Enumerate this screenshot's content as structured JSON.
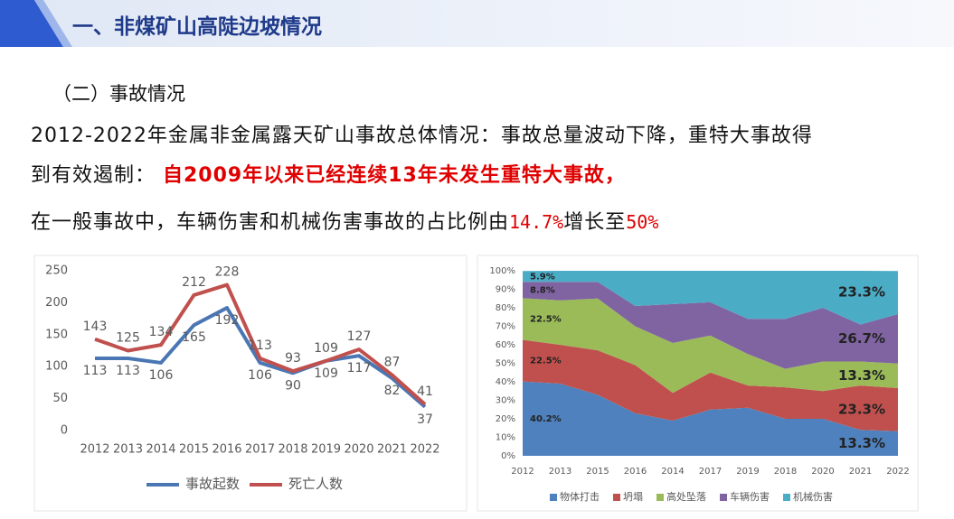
{
  "header": {
    "title": "一、非煤矿山高陡边坡情况"
  },
  "subheading": "（二）事故情况",
  "paragraph": [
    [
      {
        "text": "2012-2022年金属非金属露天矿山事故总体情况：事故总量波动下降，重特大事故得"
      }
    ],
    [
      {
        "text": "到有效遏制： "
      },
      {
        "text": "自2009年以来已经连续13年未发生重特大事故，",
        "color": "#e00000",
        "bold": true
      }
    ],
    [
      {
        "text": "在一般事故中，车辆伤害和机械伤害事故的占比例由"
      },
      {
        "text": "14.7%",
        "color": "#e00000",
        "mono": true
      },
      {
        "text": "增长至"
      },
      {
        "text": "50%",
        "color": "#e00000",
        "mono": true
      }
    ]
  ],
  "chart_data": [
    {
      "type": "line",
      "categories": [
        "2012",
        "2013",
        "2014",
        "2015",
        "2016",
        "2017",
        "2018",
        "2019",
        "2020",
        "2021",
        "2022"
      ],
      "series": [
        {
          "name": "事故起数",
          "color": "#4a77b4",
          "values": [
            113,
            113,
            106,
            165,
            192,
            106,
            90,
            109,
            117,
            82,
            37
          ]
        },
        {
          "name": "死亡人数",
          "color": "#c0504d",
          "values": [
            143,
            125,
            134,
            212,
            228,
            113,
            93,
            109,
            127,
            87,
            41
          ]
        }
      ],
      "ylim": [
        0,
        250
      ],
      "yticks": [
        0,
        50,
        100,
        150,
        200,
        250
      ],
      "grid": false,
      "legend": "bottom"
    },
    {
      "type": "stacked_area",
      "categories": [
        "2012",
        "2013",
        "2015",
        "2016",
        "2014",
        "2017",
        "2019",
        "2018",
        "2020",
        "2021",
        "2022"
      ],
      "series": [
        {
          "name": "物体打击",
          "color": "#4e81bd",
          "values": [
            40.2,
            39,
            33,
            23,
            19,
            25,
            26,
            20,
            20,
            14,
            13.3
          ],
          "value_labels": [
            "40.2%",
            null,
            null,
            null,
            null,
            null,
            null,
            null,
            null,
            null,
            "13.3%"
          ]
        },
        {
          "name": "坍塌",
          "color": "#c0504d",
          "values": [
            22.5,
            21,
            24,
            26,
            15,
            20,
            12,
            17,
            15,
            24,
            23.3
          ],
          "value_labels": [
            "22.5%",
            null,
            null,
            null,
            null,
            null,
            null,
            null,
            null,
            null,
            "23.3%"
          ]
        },
        {
          "name": "高处坠落",
          "color": "#9bbb59",
          "values": [
            22.5,
            24,
            28,
            21,
            27,
            20,
            17,
            10,
            16,
            13,
            13.3
          ],
          "value_labels": [
            "22.5%",
            null,
            null,
            null,
            null,
            null,
            null,
            null,
            null,
            null,
            "13.3%"
          ]
        },
        {
          "name": "车辆伤害",
          "color": "#8064a2",
          "values": [
            8.8,
            10,
            9,
            11,
            21,
            18,
            19,
            27,
            29,
            20,
            26.7
          ],
          "value_labels": [
            "8.8%",
            null,
            null,
            null,
            null,
            null,
            null,
            null,
            null,
            null,
            "26.7%"
          ]
        },
        {
          "name": "机械伤害",
          "color": "#4bacc6",
          "values": [
            5.9,
            6,
            6,
            19,
            18,
            17,
            26,
            26,
            20,
            29,
            23.3
          ],
          "value_labels": [
            "5.9%",
            null,
            null,
            null,
            null,
            null,
            null,
            null,
            null,
            null,
            "23.3%"
          ]
        }
      ],
      "ylim": [
        0,
        100
      ],
      "yticks": [
        {
          "value": 0,
          "label": "0%"
        },
        {
          "value": 10,
          "label": "10%"
        },
        {
          "value": 20,
          "label": "20%"
        },
        {
          "value": 30,
          "label": "30%"
        },
        {
          "value": 40,
          "label": "40%"
        },
        {
          "value": 50,
          "label": "50%"
        },
        {
          "value": 60,
          "label": "60%"
        },
        {
          "value": 70,
          "label": "70%"
        },
        {
          "value": 80,
          "label": "80%"
        },
        {
          "value": 90,
          "label": "90%"
        },
        {
          "value": 100,
          "label": "100%"
        }
      ],
      "grid": false,
      "legend": "bottom"
    }
  ]
}
